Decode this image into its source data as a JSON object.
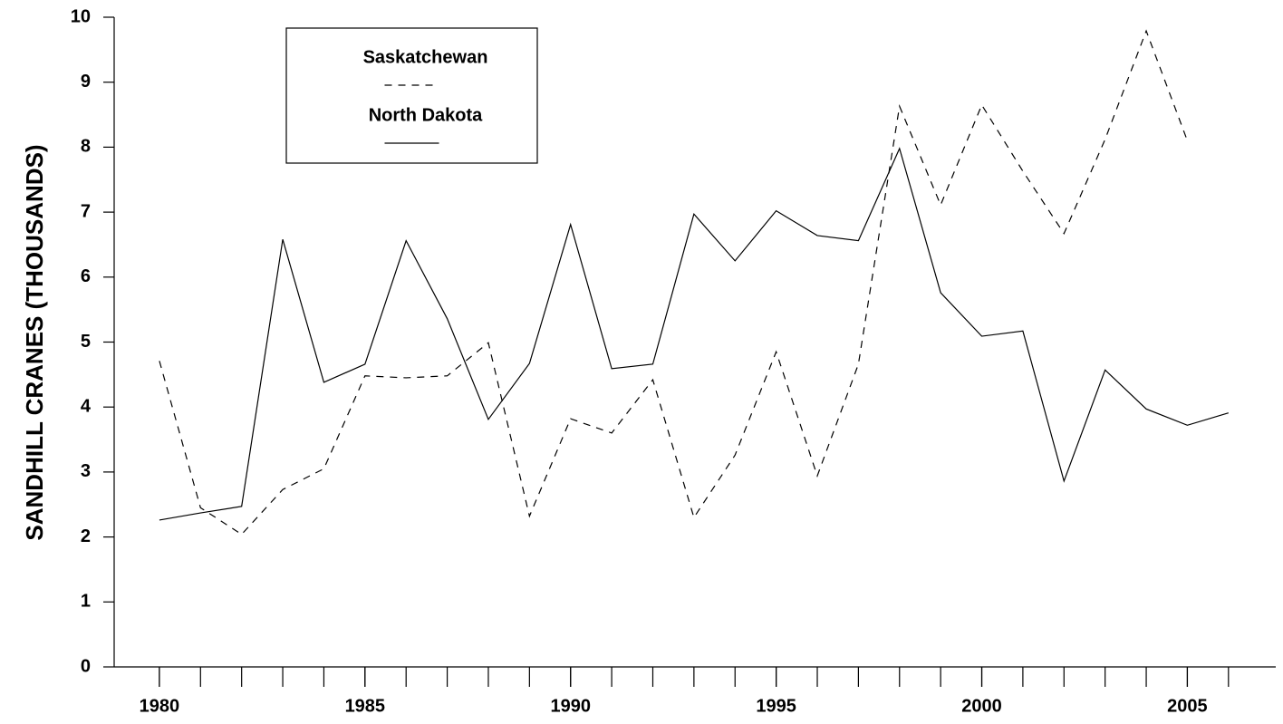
{
  "chart_data": {
    "type": "line",
    "ylabel": "SANDHILL CRANES (THOUSANDS)",
    "x": [
      1980,
      1981,
      1982,
      1983,
      1984,
      1985,
      1986,
      1987,
      1988,
      1989,
      1990,
      1991,
      1992,
      1993,
      1994,
      1995,
      1996,
      1997,
      1998,
      1999,
      2000,
      2001,
      2002,
      2003,
      2004,
      2005,
      2006
    ],
    "series": [
      {
        "name": "Saskatchewan",
        "color": "#000000",
        "line_style": "dashed",
        "values": [
          4.71,
          2.45,
          2.04,
          2.73,
          3.05,
          4.48,
          4.45,
          4.48,
          4.99,
          2.32,
          3.82,
          3.6,
          4.42,
          2.3,
          3.26,
          4.85,
          2.94,
          4.66,
          8.63,
          7.11,
          8.65,
          7.63,
          6.67,
          8.12,
          9.79,
          8.1,
          null
        ]
      },
      {
        "name": "North Dakota",
        "color": "#000000",
        "line_style": "solid",
        "values": [
          2.26,
          2.37,
          2.47,
          6.58,
          4.38,
          4.66,
          6.56,
          5.36,
          3.81,
          4.67,
          6.81,
          4.59,
          4.66,
          6.97,
          6.25,
          7.02,
          6.64,
          6.56,
          7.98,
          5.76,
          5.09,
          5.17,
          2.86,
          4.57,
          3.97,
          3.72,
          3.91
        ]
      }
    ],
    "xlim": [
      1978.9,
      2007.15
    ],
    "xticks": [
      1980,
      1985,
      1990,
      1995,
      2000,
      2005
    ],
    "xminorticks": [
      1980,
      1981,
      1982,
      1983,
      1984,
      1985,
      1986,
      1987,
      1988,
      1989,
      1990,
      1991,
      1992,
      1993,
      1994,
      1995,
      1996,
      1997,
      1998,
      1999,
      2000,
      2001,
      2002,
      2003,
      2004,
      2005,
      2006
    ],
    "ylim": [
      0,
      10
    ],
    "yticks": [
      0,
      1,
      2,
      3,
      4,
      5,
      6,
      7,
      8,
      9,
      10
    ],
    "grid": false,
    "legend": "upper left"
  }
}
